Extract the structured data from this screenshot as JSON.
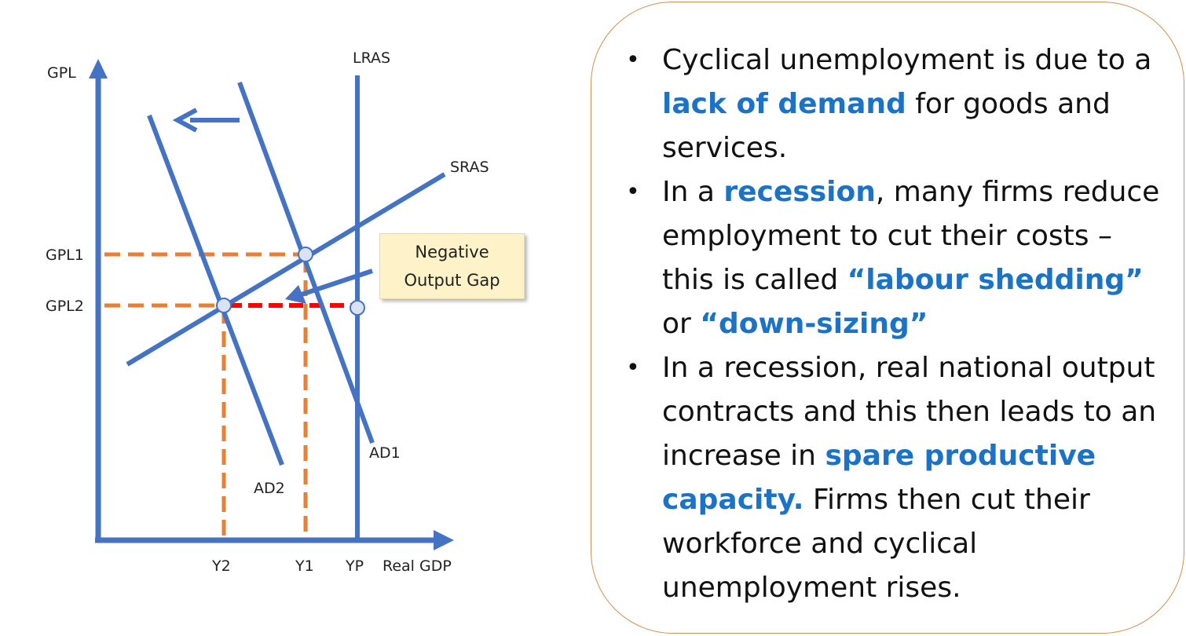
{
  "diagram": {
    "axes": {
      "y_label": "GPL",
      "x_label": "Real GDP"
    },
    "curves": {
      "lras": "LRAS",
      "sras": "SRAS",
      "ad1": "AD1",
      "ad2": "AD2"
    },
    "price_levels": {
      "gpl1": "GPL1",
      "gpl2": "GPL2"
    },
    "output_levels": {
      "y2": "Y2",
      "y1": "Y1",
      "yp": "YP"
    },
    "callout": {
      "line1": "Negative",
      "line2": "Output Gap"
    },
    "colors": {
      "curve": "#4472c4",
      "guide": "#ed7d31",
      "gap": "#ff0000",
      "point_fill": "#dae3f3",
      "callout_bg": "#fdf2c8",
      "panel_border": "#d98c4a",
      "highlight": "#1a73c8"
    },
    "icons": {
      "shift_arrow": "arrow-left-icon",
      "callout_pointer": "arrow-pointer-icon"
    }
  },
  "panel": {
    "bullet_symbol": "•",
    "bullets": [
      {
        "parts": [
          {
            "text": "Cyclical unemployment is due to a ",
            "highlight": false
          },
          {
            "text": "lack of demand",
            "highlight": true
          },
          {
            "text": " for goods and services.",
            "highlight": false
          }
        ]
      },
      {
        "parts": [
          {
            "text": "In a ",
            "highlight": false
          },
          {
            "text": "recession",
            "highlight": true
          },
          {
            "text": ", many firms reduce employment to cut their costs – this is called ",
            "highlight": false
          },
          {
            "text": "“labour shedding”",
            "highlight": true
          },
          {
            "text": " or ",
            "highlight": false
          },
          {
            "text": "“down-sizing”",
            "highlight": true
          }
        ]
      },
      {
        "parts": [
          {
            "text": "In a recession, real national output contracts and this then leads to an increase in ",
            "highlight": false
          },
          {
            "text": "spare productive capacity.",
            "highlight": true
          },
          {
            "text": " Firms then cut their workforce and cyclical unemployment rises.",
            "highlight": false
          }
        ]
      }
    ]
  }
}
